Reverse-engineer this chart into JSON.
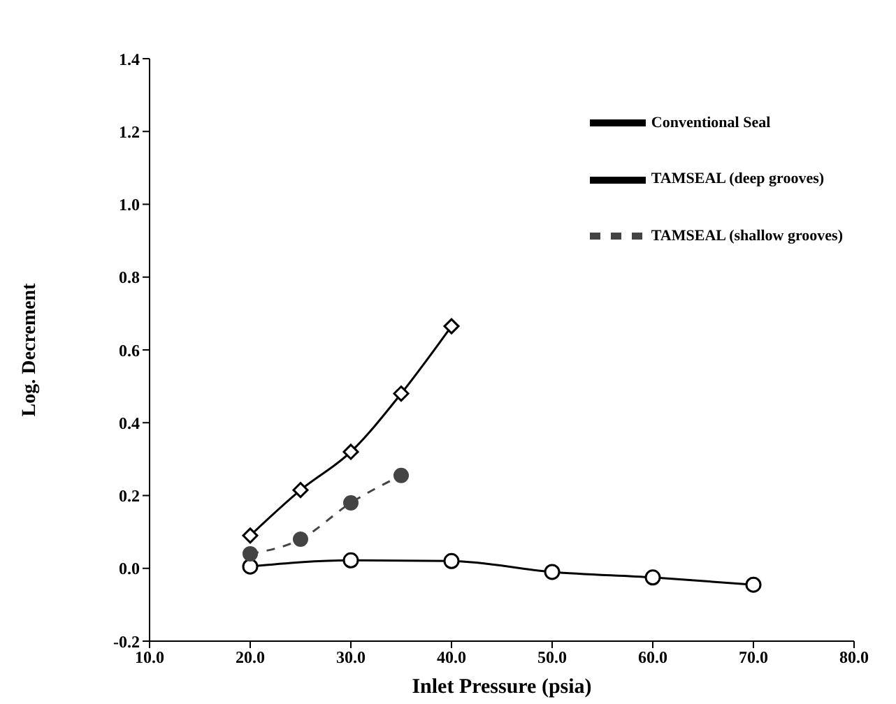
{
  "chart_data": {
    "type": "line",
    "xlabel": "Inlet Pressure (psia)",
    "ylabel": "Log. Decrement",
    "xlim": [
      10,
      80
    ],
    "xticks": [
      {
        "value": 10,
        "label": "10.0"
      },
      {
        "value": 20,
        "label": "20.0"
      },
      {
        "value": 30,
        "label": "30.0"
      },
      {
        "value": 40,
        "label": "40.0"
      },
      {
        "value": 50,
        "label": "50.0"
      },
      {
        "value": 60,
        "label": "60.0"
      },
      {
        "value": 70,
        "label": "70.0"
      },
      {
        "value": 80,
        "label": "80.0"
      }
    ],
    "ylim": [
      -0.2,
      1.4
    ],
    "yticks": [
      {
        "value": -0.2,
        "label": "-0.2"
      },
      {
        "value": 0,
        "label": "0.0"
      },
      {
        "value": 0.2,
        "label": "0.2"
      },
      {
        "value": 0.4,
        "label": "0.4"
      },
      {
        "value": 0.6,
        "label": "0.6"
      },
      {
        "value": 0.8,
        "label": "0.8"
      },
      {
        "value": 1,
        "label": "1.0"
      },
      {
        "value": 1.2,
        "label": "1.2"
      },
      {
        "value": 1.4,
        "label": "1.4"
      }
    ],
    "legend": "top right",
    "series": [
      {
        "name": "Conventional Seal",
        "color": "#000000",
        "marker": "circle",
        "line_style": "solid",
        "x": [
          20,
          30,
          40,
          50,
          60,
          70
        ],
        "values": [
          0.005,
          0.022,
          0.02,
          -0.01,
          -0.025,
          -0.045
        ]
      },
      {
        "name": "TAMSEAL (deep grooves)",
        "color": "#000000",
        "marker": "diamond",
        "line_style": "solid",
        "x": [
          20,
          25,
          30,
          35,
          40
        ],
        "values": [
          0.09,
          0.215,
          0.32,
          0.48,
          0.665
        ]
      },
      {
        "name": "TAMSEAL (shallow grooves)",
        "color": "#444444",
        "marker": "circle-filled",
        "line_style": "dashed",
        "x": [
          20,
          25,
          30,
          35
        ],
        "values": [
          0.04,
          0.08,
          0.18,
          0.255
        ]
      }
    ]
  }
}
